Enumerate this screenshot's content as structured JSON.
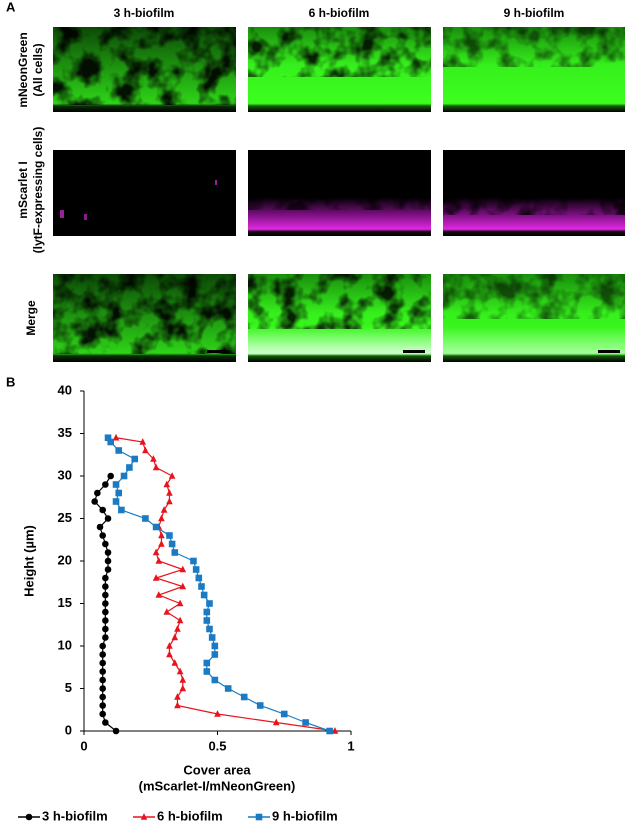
{
  "panel_a": {
    "label": "A",
    "columns": [
      "3 h-biofilm",
      "6 h-biofilm",
      "9 h-biofilm"
    ],
    "rows": [
      {
        "lines": [
          "mNeonGreen",
          "(All cells)"
        ]
      },
      {
        "lines": [
          "mScarlet I",
          "(lytF-expressing cells)"
        ]
      },
      {
        "lines": [
          "Merge"
        ]
      }
    ]
  },
  "chart_data": {
    "type": "line",
    "panel_label": "B",
    "x_label": "Cover area",
    "x_label_2": "(mScarlet-I/mNeonGreen)",
    "y_label": "Height (µm)",
    "xlim": [
      0,
      1
    ],
    "xticks": [
      0,
      0.5,
      1
    ],
    "ylim": [
      0,
      40
    ],
    "yticks": [
      0,
      5,
      10,
      15,
      20,
      25,
      30,
      35,
      40
    ],
    "legend": "bottom",
    "series": [
      {
        "name": "3 h-biofilm",
        "color": "#000000",
        "marker": "circle",
        "values": [
          0,
          1,
          2,
          3,
          4,
          5,
          6,
          7,
          8,
          9,
          10,
          11,
          12,
          13,
          14,
          15,
          16,
          17,
          18,
          19,
          20,
          21,
          22,
          23,
          24,
          25,
          26,
          27,
          28,
          29,
          30
        ],
        "x": [
          0.12,
          0.08,
          0.07,
          0.07,
          0.07,
          0.07,
          0.07,
          0.07,
          0.07,
          0.07,
          0.07,
          0.08,
          0.08,
          0.08,
          0.08,
          0.08,
          0.08,
          0.08,
          0.08,
          0.09,
          0.09,
          0.09,
          0.08,
          0.07,
          0.06,
          0.09,
          0.07,
          0.04,
          0.05,
          0.08,
          0.1
        ]
      },
      {
        "name": "6 h-biofilm",
        "color": "#e8141c",
        "marker": "triangle",
        "values": [
          0,
          1,
          2,
          3,
          4,
          5,
          6,
          7,
          8,
          9,
          10,
          11,
          12,
          13,
          14,
          15,
          16,
          17,
          18,
          19,
          20,
          21,
          22,
          23,
          24,
          25,
          26,
          27,
          28,
          29,
          30,
          31,
          32,
          33,
          34,
          34.5
        ],
        "x": [
          0.94,
          0.72,
          0.5,
          0.35,
          0.35,
          0.37,
          0.37,
          0.36,
          0.34,
          0.32,
          0.32,
          0.34,
          0.35,
          0.36,
          0.31,
          0.36,
          0.28,
          0.37,
          0.27,
          0.37,
          0.28,
          0.27,
          0.29,
          0.29,
          0.28,
          0.29,
          0.3,
          0.32,
          0.32,
          0.31,
          0.33,
          0.27,
          0.26,
          0.23,
          0.22,
          0.12
        ]
      },
      {
        "name": "9 h-biofilm",
        "color": "#1a7bc4",
        "marker": "square",
        "values": [
          0,
          1,
          2,
          3,
          4,
          5,
          6,
          7,
          8,
          9,
          10,
          11,
          12,
          13,
          14,
          15,
          16,
          17,
          18,
          19,
          20,
          21,
          22,
          23,
          24,
          25,
          26,
          27,
          28,
          29,
          30,
          31,
          32,
          33,
          34,
          34.5
        ],
        "x": [
          0.92,
          0.83,
          0.75,
          0.66,
          0.6,
          0.54,
          0.49,
          0.46,
          0.46,
          0.49,
          0.49,
          0.48,
          0.47,
          0.46,
          0.46,
          0.47,
          0.45,
          0.44,
          0.43,
          0.42,
          0.41,
          0.34,
          0.33,
          0.32,
          0.27,
          0.23,
          0.14,
          0.12,
          0.13,
          0.12,
          0.15,
          0.17,
          0.19,
          0.13,
          0.1,
          0.09
        ]
      }
    ]
  }
}
